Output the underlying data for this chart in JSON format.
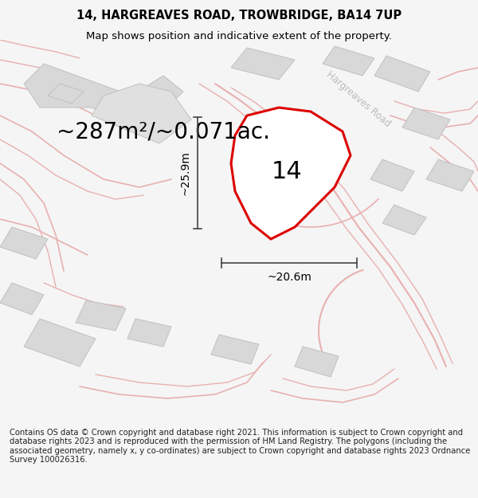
{
  "title_line1": "14, HARGREAVES ROAD, TROWBRIDGE, BA14 7UP",
  "title_line2": "Map shows position and indicative extent of the property.",
  "area_label": "~287m²/~0.071ac.",
  "property_number": "14",
  "dim_width": "~20.6m",
  "dim_height": "~25.9m",
  "footer": "Contains OS data © Crown copyright and database right 2021. This information is subject to Crown copyright and database rights 2023 and is reproduced with the permission of HM Land Registry. The polygons (including the associated geometry, namely x, y co-ordinates) are subject to Crown copyright and database rights 2023 Ordnance Survey 100026316.",
  "bg_color": "#f5f5f5",
  "map_bg": "#ffffff",
  "plot_color": "#dd0000",
  "building_fill": "#d8d8d8",
  "road_color": "#f5b8b8",
  "road_edge_color": "#e8a0a0",
  "boundary_color": "#e8b0b0",
  "dim_line_color": "#444444",
  "road_label_color": "#bbbbbb",
  "road_label": "Hargreaves Road",
  "title_fontsize": 10.5,
  "subtitle_fontsize": 9.5,
  "area_fontsize": 20,
  "number_fontsize": 22,
  "dim_fontsize": 10,
  "footer_fontsize": 7.2
}
